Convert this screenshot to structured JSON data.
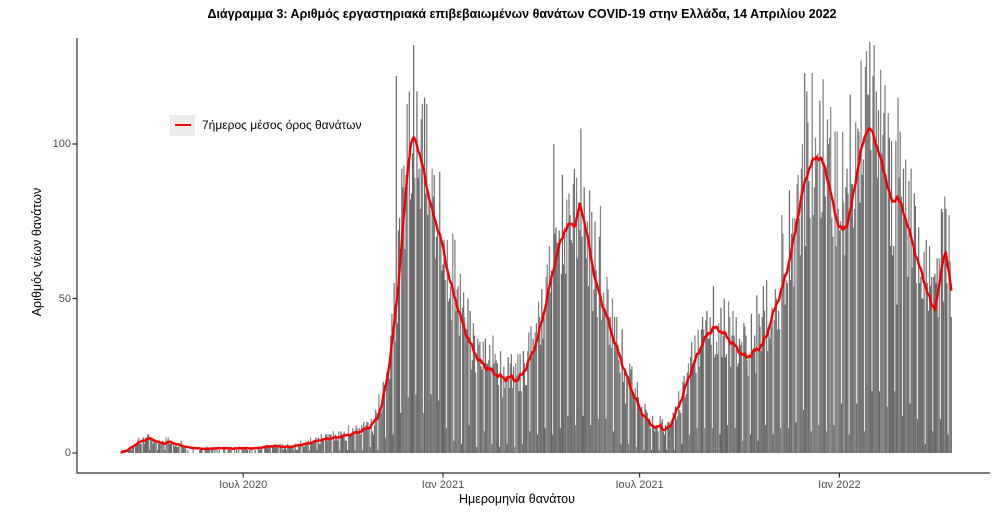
{
  "chart": {
    "title": "Διάγραμμα 3: Αριθμός εργαστηριακά επιβεβαιωμένων θανάτων COVID-19 στην Ελλάδα, 14 Απριλίου 2022",
    "xlabel": "Ημερομηνία θανάτου",
    "ylabel": "Αριθμός νέων θανάτων",
    "legend": {
      "label": "7ήμερος μέσος όρος θανάτων",
      "line_color": "#f50000",
      "key_bg": "#ececec"
    }
  },
  "chart_data": {
    "type": "bar",
    "title": "Διάγραμμα 3: Αριθμός εργαστηριακά επιβεβαιωμένων θανάτων COVID-19 στην Ελλάδα, 14 Απριλίου 2022",
    "xlabel": "Ημερομηνία θανάτου",
    "ylabel": "Αριθμός νέων θανάτων",
    "x_range": [
      "2020-03-11",
      "2022-04-14"
    ],
    "ylim": [
      0,
      134
    ],
    "y_ticks": [
      0,
      50,
      100
    ],
    "x_ticks": [
      {
        "label": "Ιουλ 2020",
        "date": "2020-07-01"
      },
      {
        "label": "Ιαν 2021",
        "date": "2021-01-01"
      },
      {
        "label": "Ιουλ 2021",
        "date": "2021-07-01"
      },
      {
        "label": "Ιαν 2022",
        "date": "2022-01-01"
      }
    ],
    "grid": false,
    "legend_position": "inside-top-left",
    "bar_color": "#7f7f7f",
    "series": [
      {
        "name": "7ήμερος μέσος όρος θανάτων",
        "type": "line",
        "color": "#f50000",
        "points": [
          [
            "2020-03-11",
            0.2
          ],
          [
            "2020-03-16",
            0.8
          ],
          [
            "2020-03-21",
            2.0
          ],
          [
            "2020-03-26",
            3.2
          ],
          [
            "2020-03-31",
            4.0
          ],
          [
            "2020-04-05",
            4.7
          ],
          [
            "2020-04-10",
            4.2
          ],
          [
            "2020-04-15",
            3.4
          ],
          [
            "2020-04-20",
            3.1
          ],
          [
            "2020-04-24",
            3.6
          ],
          [
            "2020-04-29",
            3.1
          ],
          [
            "2020-05-05",
            2.4
          ],
          [
            "2020-05-12",
            1.8
          ],
          [
            "2020-05-20",
            1.5
          ],
          [
            "2020-05-28",
            1.3
          ],
          [
            "2020-06-05",
            1.5
          ],
          [
            "2020-06-13",
            1.6
          ],
          [
            "2020-06-21",
            1.4
          ],
          [
            "2020-06-29",
            1.6
          ],
          [
            "2020-07-07",
            1.5
          ],
          [
            "2020-07-15",
            1.6
          ],
          [
            "2020-07-23",
            2.1
          ],
          [
            "2020-07-31",
            2.3
          ],
          [
            "2020-08-08",
            2.0
          ],
          [
            "2020-08-16",
            2.1
          ],
          [
            "2020-08-24",
            2.7
          ],
          [
            "2020-09-01",
            3.3
          ],
          [
            "2020-09-09",
            4.1
          ],
          [
            "2020-09-17",
            4.6
          ],
          [
            "2020-09-25",
            5.0
          ],
          [
            "2020-10-03",
            5.6
          ],
          [
            "2020-10-11",
            6.3
          ],
          [
            "2020-10-19",
            7.3
          ],
          [
            "2020-10-26",
            8.6
          ],
          [
            "2020-11-01",
            11
          ],
          [
            "2020-11-06",
            16
          ],
          [
            "2020-11-11",
            25
          ],
          [
            "2020-11-16",
            38
          ],
          [
            "2020-11-21",
            55
          ],
          [
            "2020-11-25",
            72
          ],
          [
            "2020-11-29",
            90
          ],
          [
            "2020-12-02",
            99
          ],
          [
            "2020-12-05",
            102
          ],
          [
            "2020-12-08",
            100
          ],
          [
            "2020-12-11",
            96
          ],
          [
            "2020-12-15",
            90
          ],
          [
            "2020-12-19",
            83
          ],
          [
            "2020-12-23",
            77
          ],
          [
            "2020-12-27",
            73
          ],
          [
            "2020-12-31",
            68
          ],
          [
            "2021-01-04",
            61
          ],
          [
            "2021-01-08",
            55
          ],
          [
            "2021-01-13",
            49
          ],
          [
            "2021-01-18",
            43
          ],
          [
            "2021-01-23",
            38
          ],
          [
            "2021-01-28",
            34
          ],
          [
            "2021-02-03",
            30
          ],
          [
            "2021-02-09",
            28
          ],
          [
            "2021-02-15",
            26.5
          ],
          [
            "2021-02-21",
            25
          ],
          [
            "2021-02-27",
            24
          ],
          [
            "2021-03-05",
            24.5
          ],
          [
            "2021-03-10",
            23.5
          ],
          [
            "2021-03-14",
            25
          ],
          [
            "2021-03-19",
            28
          ],
          [
            "2021-03-24",
            32
          ],
          [
            "2021-03-29",
            37
          ],
          [
            "2021-04-03",
            44
          ],
          [
            "2021-04-08",
            52
          ],
          [
            "2021-04-13",
            60
          ],
          [
            "2021-04-18",
            67
          ],
          [
            "2021-04-23",
            72
          ],
          [
            "2021-04-28",
            74
          ],
          [
            "2021-05-03",
            74
          ],
          [
            "2021-05-07",
            80
          ],
          [
            "2021-05-10",
            77
          ],
          [
            "2021-05-14",
            70
          ],
          [
            "2021-05-18",
            62
          ],
          [
            "2021-05-22",
            55
          ],
          [
            "2021-05-27",
            49
          ],
          [
            "2021-06-01",
            44
          ],
          [
            "2021-06-06",
            38
          ],
          [
            "2021-06-11",
            33
          ],
          [
            "2021-06-16",
            28
          ],
          [
            "2021-06-21",
            23
          ],
          [
            "2021-06-26",
            18.5
          ],
          [
            "2021-07-01",
            14.5
          ],
          [
            "2021-07-06",
            11.5
          ],
          [
            "2021-07-11",
            9.5
          ],
          [
            "2021-07-16",
            8.0
          ],
          [
            "2021-07-20",
            9.0
          ],
          [
            "2021-07-24",
            7.2
          ],
          [
            "2021-07-29",
            8.8
          ],
          [
            "2021-08-03",
            12.5
          ],
          [
            "2021-08-08",
            17
          ],
          [
            "2021-08-13",
            22
          ],
          [
            "2021-08-18",
            27
          ],
          [
            "2021-08-23",
            31.5
          ],
          [
            "2021-08-28",
            35.5
          ],
          [
            "2021-09-02",
            38.5
          ],
          [
            "2021-09-07",
            40.5
          ],
          [
            "2021-09-12",
            40
          ],
          [
            "2021-09-17",
            38.5
          ],
          [
            "2021-09-22",
            36.5
          ],
          [
            "2021-09-27",
            34.5
          ],
          [
            "2021-10-02",
            32.5
          ],
          [
            "2021-10-07",
            31
          ],
          [
            "2021-10-12",
            32
          ],
          [
            "2021-10-17",
            33.5
          ],
          [
            "2021-10-22",
            35
          ],
          [
            "2021-10-26",
            38
          ],
          [
            "2021-10-30",
            43
          ],
          [
            "2021-11-04",
            48
          ],
          [
            "2021-11-09",
            53
          ],
          [
            "2021-11-13",
            58
          ],
          [
            "2021-11-17",
            64
          ],
          [
            "2021-11-21",
            71
          ],
          [
            "2021-11-25",
            79
          ],
          [
            "2021-11-29",
            86
          ],
          [
            "2021-12-03",
            91
          ],
          [
            "2021-12-07",
            94
          ],
          [
            "2021-12-11",
            96
          ],
          [
            "2021-12-15",
            95
          ],
          [
            "2021-12-19",
            92
          ],
          [
            "2021-12-23",
            86
          ],
          [
            "2021-12-27",
            79
          ],
          [
            "2021-12-31",
            74
          ],
          [
            "2022-01-04",
            72
          ],
          [
            "2022-01-08",
            74
          ],
          [
            "2022-01-12",
            80
          ],
          [
            "2022-01-16",
            88
          ],
          [
            "2022-01-20",
            96
          ],
          [
            "2022-01-24",
            102
          ],
          [
            "2022-01-27",
            105
          ],
          [
            "2022-01-31",
            104
          ],
          [
            "2022-02-04",
            100
          ],
          [
            "2022-02-08",
            95
          ],
          [
            "2022-02-12",
            90
          ],
          [
            "2022-02-16",
            84
          ],
          [
            "2022-02-19",
            81
          ],
          [
            "2022-02-23",
            83
          ],
          [
            "2022-02-27",
            80
          ],
          [
            "2022-03-03",
            76
          ],
          [
            "2022-03-07",
            71
          ],
          [
            "2022-03-11",
            66
          ],
          [
            "2022-03-15",
            61
          ],
          [
            "2022-03-19",
            57
          ],
          [
            "2022-03-23",
            52
          ],
          [
            "2022-03-27",
            48
          ],
          [
            "2022-03-30",
            47
          ],
          [
            "2022-04-02",
            52
          ],
          [
            "2022-04-05",
            59
          ],
          [
            "2022-04-07",
            64
          ],
          [
            "2022-04-09",
            65
          ],
          [
            "2022-04-11",
            60
          ],
          [
            "2022-04-13",
            55
          ],
          [
            "2022-04-14",
            53
          ]
        ]
      },
      {
        "name": "daily-deaths-bars",
        "type": "bar",
        "color": "#7f7f7f",
        "description": "daily reported deaths, scattered around the 7-day average",
        "notable_bars": [
          [
            "2020-11-19",
            122
          ],
          [
            "2020-11-29",
            113
          ],
          [
            "2021-04-13",
            100
          ],
          [
            "2021-12-14",
            114
          ],
          [
            "2022-01-21",
            127
          ],
          [
            "2022-01-26",
            130
          ]
        ]
      }
    ]
  }
}
